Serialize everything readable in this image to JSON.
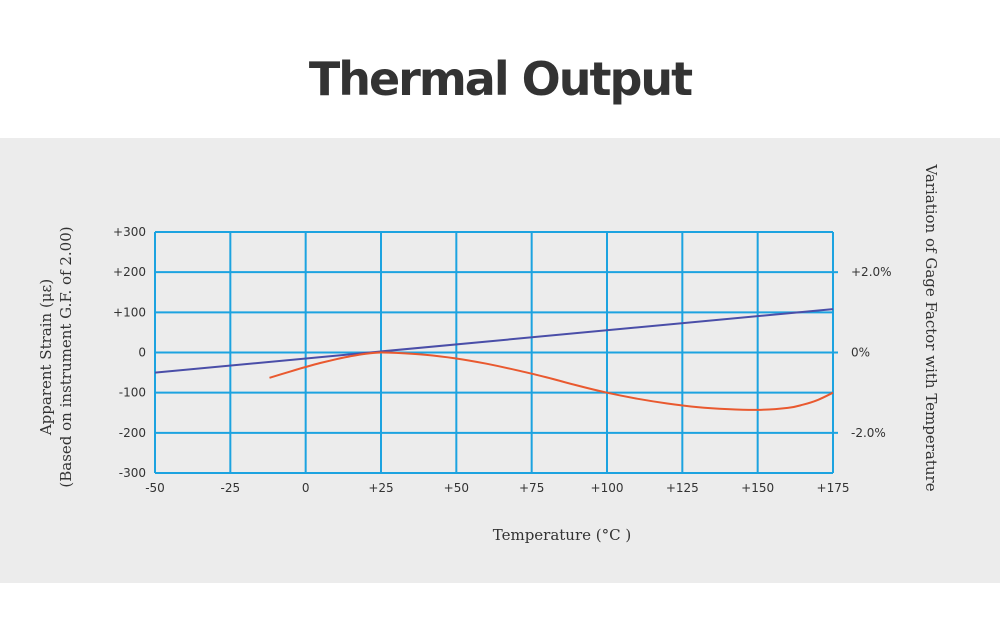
{
  "page": {
    "title": "Thermal Output"
  },
  "chart_data": {
    "type": "line",
    "title": "",
    "xlabel": "Temperature (°C )",
    "ylabel_lines": [
      "Apparent Strain (με)",
      "(Based on instrument G.F. of 2.00)"
    ],
    "ylabel_right": "Variation of Gage Factor with Temperature",
    "xlim": [
      -50,
      175
    ],
    "ylim": [
      -300,
      300
    ],
    "x_ticks": [
      -50,
      -25,
      0,
      25,
      50,
      75,
      100,
      125,
      150,
      175
    ],
    "x_tick_labels": [
      "-50",
      "-25",
      "0",
      "+25",
      "+50",
      "+75",
      "+100",
      "+125",
      "+150",
      "+175"
    ],
    "y_ticks": [
      -300,
      -200,
      -100,
      0,
      100,
      200,
      300
    ],
    "y_tick_labels": [
      "-300",
      "-200",
      "-100",
      "0",
      "+100",
      "+200",
      "+300"
    ],
    "y2_ticks": [
      200,
      0,
      -200
    ],
    "y2_tick_labels": [
      "+2.0%",
      "0%",
      "-2.0%"
    ],
    "grid": true,
    "colors": {
      "grid": "#1ca3e0",
      "gage_factor_line": "#4a4ea8",
      "thermal_output_curve": "#e9592f",
      "panel": "#ececec",
      "text": "#333333"
    },
    "series": [
      {
        "key": "gage_factor",
        "x": [
          -50,
          175
        ],
        "y": [
          -50,
          108
        ]
      },
      {
        "key": "thermal_output",
        "x": [
          -12,
          -5,
          0,
          5,
          10,
          15,
          20,
          25,
          30,
          40,
          50,
          60,
          70,
          80,
          90,
          100,
          110,
          120,
          130,
          140,
          150,
          160,
          165,
          170,
          175
        ],
        "y": [
          -63,
          -47,
          -36,
          -26,
          -17,
          -9,
          -3,
          0,
          -1,
          -6,
          -15,
          -28,
          -44,
          -62,
          -82,
          -100,
          -115,
          -127,
          -136,
          -141,
          -143,
          -138,
          -130,
          -118,
          -100
        ]
      }
    ]
  }
}
